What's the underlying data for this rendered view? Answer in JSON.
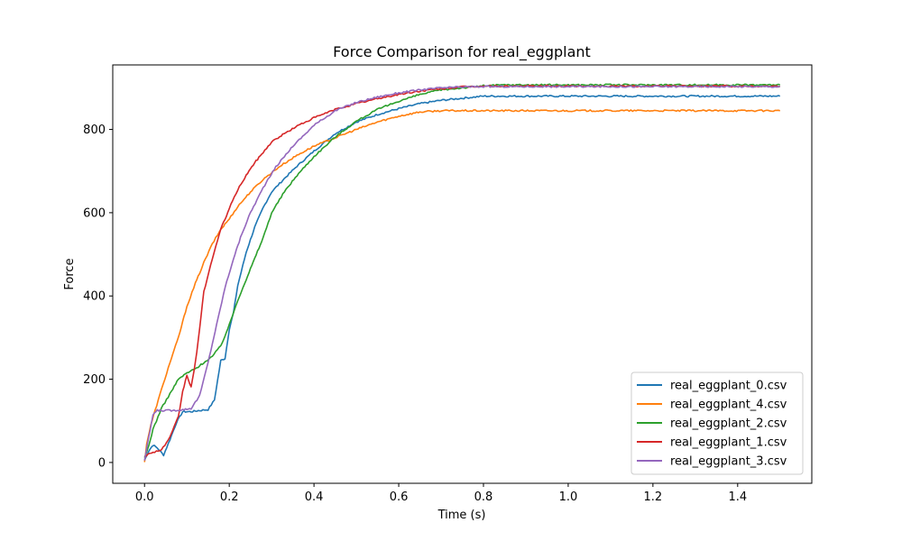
{
  "chart_data": {
    "type": "line",
    "title": "Force Comparison for real_eggplant",
    "xlabel": "Time (s)",
    "ylabel": "Force",
    "xlim": [
      -0.075,
      1.575
    ],
    "ylim": [
      -50,
      955
    ],
    "xticks": [
      0.0,
      0.2,
      0.4,
      0.6,
      0.8,
      1.0,
      1.2,
      1.4
    ],
    "xtick_labels": [
      "0.0",
      "0.2",
      "0.4",
      "0.6",
      "0.8",
      "1.0",
      "1.2",
      "1.4"
    ],
    "yticks": [
      0,
      200,
      400,
      600,
      800
    ],
    "ytick_labels": [
      "0",
      "200",
      "400",
      "600",
      "800"
    ],
    "grid": false,
    "legend_position": "lower-right",
    "series": [
      {
        "name": "real_eggplant_0.csv",
        "color": "#1f77b4",
        "x": [
          0,
          0.01,
          0.02,
          0.03,
          0.045,
          0.06,
          0.075,
          0.09,
          0.11,
          0.13,
          0.15,
          0.165,
          0.18,
          0.19,
          0.2,
          0.21,
          0.22,
          0.24,
          0.26,
          0.28,
          0.3,
          0.33,
          0.36,
          0.4,
          0.45,
          0.5,
          0.55,
          0.6,
          0.65,
          0.7,
          0.75,
          0.8,
          0.85,
          1.0,
          1.2,
          1.5
        ],
        "y": [
          5,
          28,
          42,
          35,
          18,
          55,
          95,
          122,
          122,
          125,
          127,
          150,
          245,
          250,
          320,
          360,
          425,
          505,
          565,
          612,
          650,
          682,
          712,
          748,
          790,
          818,
          836,
          850,
          862,
          870,
          875,
          880,
          880,
          880,
          880,
          880
        ]
      },
      {
        "name": "real_eggplant_4.csv",
        "color": "#ff7f0e",
        "x": [
          0,
          0.005,
          0.015,
          0.025,
          0.04,
          0.06,
          0.08,
          0.1,
          0.12,
          0.14,
          0.16,
          0.18,
          0.2,
          0.22,
          0.25,
          0.28,
          0.32,
          0.36,
          0.4,
          0.45,
          0.5,
          0.55,
          0.6,
          0.65,
          0.7,
          0.8,
          1.0,
          1.2,
          1.5
        ],
        "y": [
          0,
          45,
          90,
          125,
          175,
          240,
          300,
          375,
          430,
          480,
          525,
          560,
          585,
          615,
          650,
          680,
          712,
          738,
          760,
          780,
          800,
          818,
          832,
          842,
          845,
          845,
          845,
          845,
          845
        ]
      },
      {
        "name": "real_eggplant_2.csv",
        "color": "#2ca02c",
        "x": [
          0,
          0.01,
          0.02,
          0.04,
          0.06,
          0.08,
          0.1,
          0.12,
          0.14,
          0.16,
          0.18,
          0.2,
          0.22,
          0.24,
          0.26,
          0.28,
          0.3,
          0.33,
          0.36,
          0.4,
          0.45,
          0.5,
          0.55,
          0.6,
          0.65,
          0.7,
          0.75,
          0.8,
          0.85,
          1.0,
          1.2,
          1.5
        ],
        "y": [
          10,
          40,
          80,
          130,
          165,
          200,
          215,
          225,
          240,
          255,
          280,
          330,
          390,
          440,
          490,
          540,
          600,
          650,
          690,
          735,
          782,
          820,
          848,
          868,
          884,
          895,
          900,
          905,
          907,
          907,
          907,
          907
        ]
      },
      {
        "name": "real_eggplant_1.csv",
        "color": "#d62728",
        "x": [
          0,
          0.02,
          0.04,
          0.06,
          0.08,
          0.09,
          0.1,
          0.11,
          0.12,
          0.13,
          0.14,
          0.16,
          0.18,
          0.2,
          0.22,
          0.24,
          0.26,
          0.28,
          0.3,
          0.33,
          0.36,
          0.4,
          0.45,
          0.5,
          0.55,
          0.6,
          0.65,
          0.7,
          0.75,
          0.8,
          1.0,
          1.2,
          1.5
        ],
        "y": [
          15,
          25,
          30,
          60,
          110,
          170,
          210,
          180,
          240,
          320,
          410,
          490,
          560,
          610,
          655,
          690,
          720,
          745,
          770,
          790,
          808,
          828,
          848,
          862,
          874,
          884,
          892,
          898,
          902,
          904,
          904,
          904,
          904
        ]
      },
      {
        "name": "real_eggplant_3.csv",
        "color": "#9467bd",
        "x": [
          0,
          0.01,
          0.02,
          0.03,
          0.05,
          0.07,
          0.09,
          0.11,
          0.13,
          0.15,
          0.17,
          0.19,
          0.21,
          0.23,
          0.25,
          0.28,
          0.31,
          0.35,
          0.4,
          0.45,
          0.5,
          0.55,
          0.6,
          0.65,
          0.7,
          0.75,
          0.8,
          1.0,
          1.2,
          1.5
        ],
        "y": [
          5,
          60,
          115,
          125,
          125,
          125,
          127,
          130,
          160,
          240,
          330,
          420,
          490,
          550,
          600,
          660,
          710,
          760,
          810,
          845,
          865,
          878,
          888,
          895,
          900,
          902,
          903,
          903,
          903,
          903
        ]
      }
    ]
  }
}
